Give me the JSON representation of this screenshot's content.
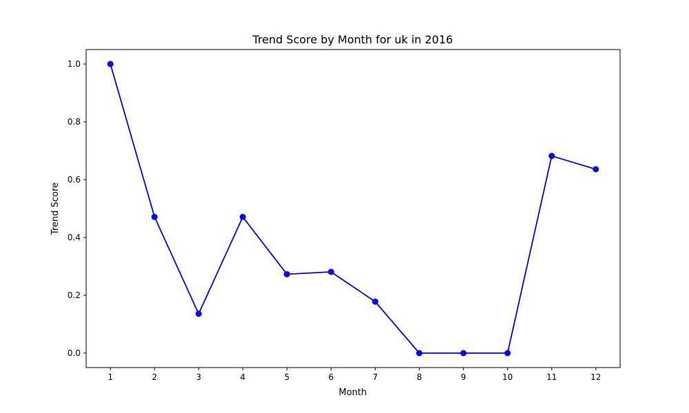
{
  "chart_data": {
    "type": "line",
    "title": "Trend Score by Month for uk in 2016",
    "xlabel": "Month",
    "ylabel": "Trend Score",
    "x": [
      1,
      2,
      3,
      4,
      5,
      6,
      7,
      8,
      9,
      10,
      11,
      12
    ],
    "xticks": [
      "1",
      "2",
      "3",
      "4",
      "5",
      "6",
      "7",
      "8",
      "9",
      "10",
      "11",
      "12"
    ],
    "yticks": [
      "0.0",
      "0.2",
      "0.4",
      "0.6",
      "0.8",
      "1.0"
    ],
    "ylim": [
      -0.05,
      1.05
    ],
    "xlim": [
      0.45,
      12.55
    ],
    "grid": false,
    "series": [
      {
        "values": [
          1.0,
          0.471,
          0.136,
          0.471,
          0.273,
          0.281,
          0.178,
          0.0,
          0.0,
          0.0,
          0.682,
          0.636
        ],
        "color": "#0000ff",
        "marker": "circle"
      }
    ]
  }
}
